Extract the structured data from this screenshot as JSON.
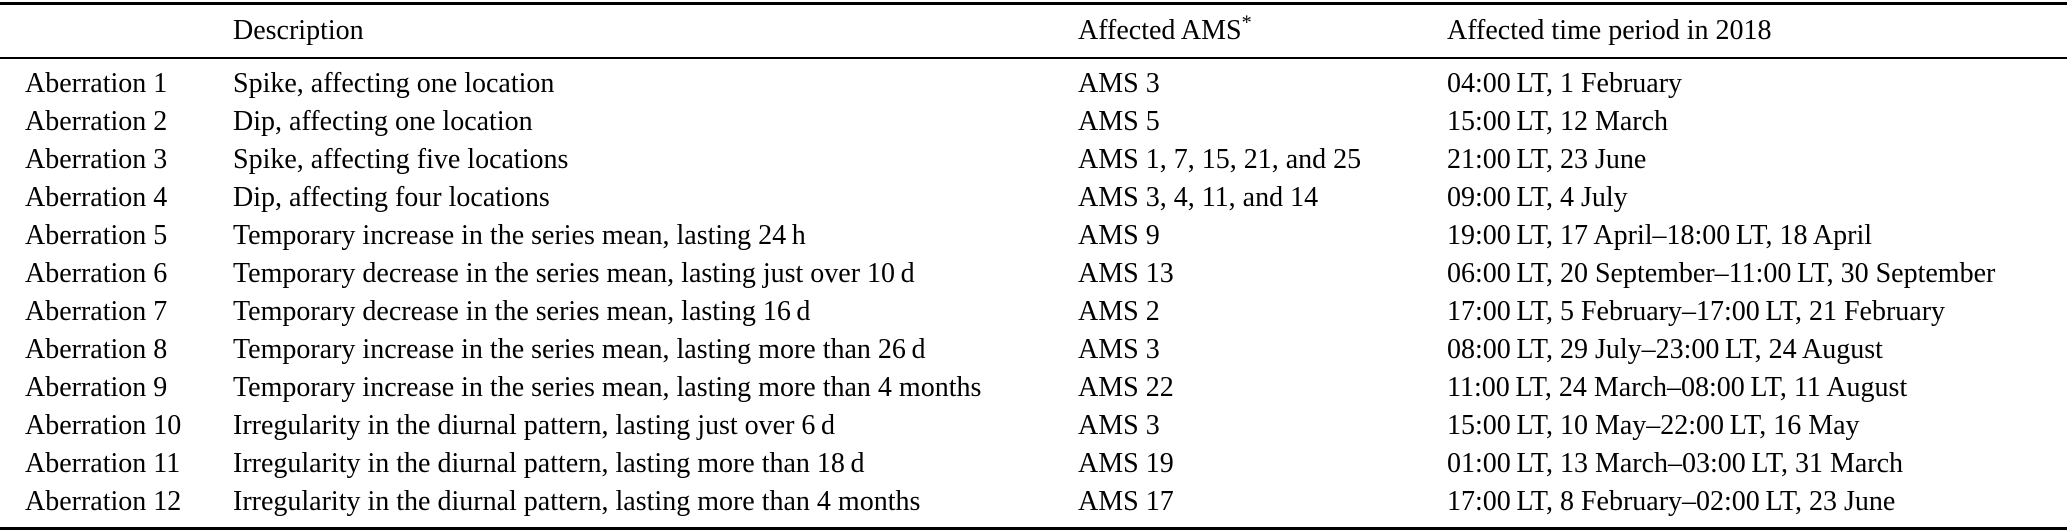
{
  "table": {
    "headers": {
      "label": "",
      "description": "Description",
      "affected_ams": "Affected AMS",
      "affected_ams_marker": "*",
      "time_period": "Affected time period in 2018"
    },
    "rows": [
      {
        "label": "Aberration 1",
        "description": "Spike, affecting one location",
        "ams": "AMS 3",
        "period": "04:00 LT, 1 February"
      },
      {
        "label": "Aberration 2",
        "description": "Dip, affecting one location",
        "ams": "AMS 5",
        "period": "15:00 LT, 12 March"
      },
      {
        "label": "Aberration 3",
        "description": "Spike, affecting five locations",
        "ams": "AMS 1, 7, 15, 21, and 25",
        "period": "21:00 LT, 23 June"
      },
      {
        "label": "Aberration 4",
        "description": "Dip, affecting four locations",
        "ams": "AMS 3, 4, 11, and 14",
        "period": "09:00 LT, 4 July"
      },
      {
        "label": "Aberration 5",
        "description": "Temporary increase in the series mean, lasting 24 h",
        "ams": "AMS 9",
        "period": "19:00 LT, 17 April–18:00 LT, 18 April"
      },
      {
        "label": "Aberration 6",
        "description": "Temporary decrease in the series mean, lasting just over 10 d",
        "ams": "AMS 13",
        "period": "06:00 LT, 20 September–11:00 LT, 30 September"
      },
      {
        "label": "Aberration 7",
        "description": "Temporary decrease in the series mean, lasting 16 d",
        "ams": "AMS 2",
        "period": "17:00 LT, 5 February–17:00 LT, 21 February"
      },
      {
        "label": "Aberration 8",
        "description": "Temporary increase in the series mean, lasting more than 26 d",
        "ams": "AMS 3",
        "period": "08:00 LT, 29 July–23:00 LT, 24 August"
      },
      {
        "label": "Aberration 9",
        "description": "Temporary increase in the series mean, lasting more than 4 months",
        "ams": "AMS 22",
        "period": "11:00 LT, 24 March–08:00 LT, 11 August"
      },
      {
        "label": "Aberration 10",
        "description": "Irregularity in the diurnal pattern, lasting just over 6 d",
        "ams": "AMS 3",
        "period": "15:00 LT, 10 May–22:00 LT, 16 May"
      },
      {
        "label": "Aberration 11",
        "description": "Irregularity in the diurnal pattern, lasting more than 18 d",
        "ams": "AMS 19",
        "period": "01:00 LT, 13 March–03:00 LT, 31 March"
      },
      {
        "label": "Aberration 12",
        "description": "Irregularity in the diurnal pattern, lasting more than 4 months",
        "ams": "AMS 17",
        "period": "17:00 LT, 8 February–02:00 LT, 23 June"
      }
    ]
  },
  "colors": {
    "text": "#000000",
    "background": "#ffffff",
    "rule": "#000000"
  }
}
